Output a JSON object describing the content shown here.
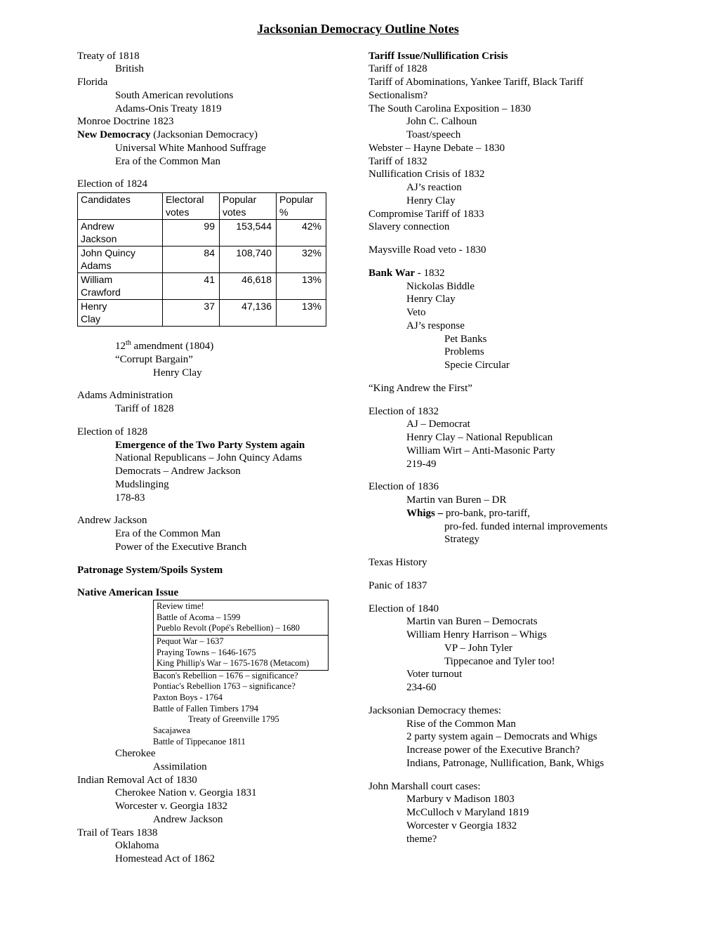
{
  "title": "Jacksonian Democracy Outline Notes",
  "election_table": {
    "headers": [
      "Candidates",
      "Electoral votes",
      "Popular votes",
      "Popular %"
    ],
    "rows": [
      [
        "Andrew Jackson",
        "99",
        "153,544",
        "42%"
      ],
      [
        "John Quincy Adams",
        "84",
        "108,740",
        "32%"
      ],
      [
        "William Crawford",
        "41",
        "46,618",
        "13%"
      ],
      [
        "Henry Clay",
        "37",
        "47,136",
        "13%"
      ]
    ],
    "col_widths": [
      "110px",
      "70px",
      "70px",
      "60px"
    ]
  },
  "col1": [
    {
      "t": "Treaty of 1818",
      "i": 0
    },
    {
      "t": "British",
      "i": 1
    },
    {
      "t": "Florida",
      "i": 0
    },
    {
      "t": "South American revolutions",
      "i": 1
    },
    {
      "t": "Adams-Onis Treaty 1819",
      "i": 1
    },
    {
      "t": "Monroe Doctrine 1823",
      "i": 0
    },
    {
      "html": "<b>New Democracy</b> (Jacksonian Democracy)",
      "i": 0
    },
    {
      "t": "Universal White Manhood Suffrage",
      "i": 1
    },
    {
      "t": "Era of the Common Man",
      "i": 1
    },
    {
      "sp": true
    },
    {
      "t": "Election of 1824",
      "i": 0
    },
    {
      "table": true
    },
    {
      "sp": true
    },
    {
      "html": "12<sup>th</sup> amendment (1804)",
      "i": 1
    },
    {
      "t": "“Corrupt Bargain”",
      "i": 1
    },
    {
      "t": "Henry Clay",
      "i": 2
    },
    {
      "sp": true
    },
    {
      "t": "Adams Administration",
      "i": 0
    },
    {
      "t": "Tariff of 1828",
      "i": 1
    },
    {
      "sp": true
    },
    {
      "t": "Election of 1828",
      "i": 0
    },
    {
      "t": "Emergence of the Two Party System again",
      "i": 1,
      "b": true
    },
    {
      "t": "National Republicans – John Quincy Adams",
      "i": 1
    },
    {
      "t": "Democrats – Andrew Jackson",
      "i": 1
    },
    {
      "t": "Mudslinging",
      "i": 1
    },
    {
      "t": "178-83",
      "i": 1
    },
    {
      "sp": true
    },
    {
      "t": "Andrew Jackson",
      "i": 0
    },
    {
      "t": "Era of the Common Man",
      "i": 1
    },
    {
      "t": "Power of the Executive Branch",
      "i": 1
    },
    {
      "sp": true
    },
    {
      "t": "Patronage System/Spoils System",
      "i": 0,
      "b": true
    },
    {
      "sp": true
    },
    {
      "t": "Native American Issue",
      "i": 0,
      "b": true
    },
    {
      "review": true
    },
    {
      "free": true
    },
    {
      "t": "Cherokee",
      "i": 1
    },
    {
      "t": "Assimilation",
      "i": 2
    },
    {
      "t": "Indian Removal Act of 1830",
      "i": 0
    },
    {
      "t": "Cherokee Nation v. Georgia 1831",
      "i": 1
    },
    {
      "t": "Worcester v. Georgia 1832",
      "i": 1
    },
    {
      "t": "Andrew Jackson",
      "i": 2
    },
    {
      "t": "Trail of Tears 1838",
      "i": 0
    },
    {
      "t": "Oklahoma",
      "i": 1
    },
    {
      "t": "Homestead Act of 1862",
      "i": 1
    }
  ],
  "review_rows": [
    "Review time!\nBattle of Acoma – 1599\nPueblo Revolt (Popé's Rebellion) – 1680",
    "Pequot War – 1637\nPraying Towns – 1646-1675\nKing Phillip's War – 1675-1678 (Metacom)"
  ],
  "free_lines": [
    {
      "t": "Bacon's Rebellion – 1676 – significance?"
    },
    {
      "t": "Pontiac's Rebellion 1763 – significance?"
    },
    {
      "t": "Paxton Boys - 1764"
    },
    {
      "t": "Battle of Fallen Timbers 1794"
    },
    {
      "t": "Treaty of Greenville 1795",
      "sub": true
    },
    {
      "t": "Sacajawea"
    },
    {
      "t": "Battle of Tippecanoe 1811"
    }
  ],
  "col2": [
    {
      "t": "Tariff Issue/Nullification Crisis",
      "i": 0,
      "b": true
    },
    {
      "t": "Tariff of 1828",
      "i": 0
    },
    {
      "t": "Tariff of Abominations, Yankee Tariff, Black Tariff",
      "i": 0
    },
    {
      "t": "Sectionalism?",
      "i": 0
    },
    {
      "t": "The South Carolina Exposition – 1830",
      "i": 0
    },
    {
      "t": "John C. Calhoun",
      "i": 1
    },
    {
      "t": "Toast/speech",
      "i": 1
    },
    {
      "t": "Webster – Hayne Debate – 1830",
      "i": 0
    },
    {
      "t": "Tariff of 1832",
      "i": 0
    },
    {
      "t": "Nullification Crisis of 1832",
      "i": 0
    },
    {
      "t": "AJ’s reaction",
      "i": 1
    },
    {
      "t": "Henry Clay",
      "i": 1
    },
    {
      "t": "Compromise Tariff of 1833",
      "i": 0
    },
    {
      "t": "Slavery connection",
      "i": 0
    },
    {
      "sp": true
    },
    {
      "t": "Maysville Road veto - 1830",
      "i": 0
    },
    {
      "sp": true
    },
    {
      "html": "<b>Bank War</b> - 1832",
      "i": 0
    },
    {
      "t": "Nickolas Biddle",
      "i": 1
    },
    {
      "t": "Henry Clay",
      "i": 1
    },
    {
      "t": "Veto",
      "i": 1
    },
    {
      "t": "AJ’s response",
      "i": 1
    },
    {
      "t": "Pet Banks",
      "i": 2
    },
    {
      "t": "Problems",
      "i": 2
    },
    {
      "t": "Specie Circular",
      "i": 2
    },
    {
      "sp": true
    },
    {
      "t": "“King Andrew the First”",
      "i": 0
    },
    {
      "sp": true
    },
    {
      "t": "Election of 1832",
      "i": 0
    },
    {
      "t": "AJ – Democrat",
      "i": 1
    },
    {
      "t": "Henry Clay – National Republican",
      "i": 1
    },
    {
      "t": "William Wirt – Anti-Masonic Party",
      "i": 1
    },
    {
      "t": "219-49",
      "i": 1
    },
    {
      "sp": true
    },
    {
      "t": "Election of 1836",
      "i": 0
    },
    {
      "t": "Martin van Buren – DR",
      "i": 1
    },
    {
      "html": "<b>Whigs –</b> pro-bank, pro-tariff,",
      "i": 1
    },
    {
      "t": "pro-fed. funded internal improvements",
      "i": 2
    },
    {
      "t": "Strategy",
      "i": 2
    },
    {
      "sp": true
    },
    {
      "t": "Texas History",
      "i": 0
    },
    {
      "sp": true
    },
    {
      "t": "Panic of 1837",
      "i": 0
    },
    {
      "sp": true
    },
    {
      "t": "Election of 1840",
      "i": 0
    },
    {
      "t": "Martin van Buren – Democrats",
      "i": 1
    },
    {
      "t": "William Henry Harrison – Whigs",
      "i": 1
    },
    {
      "t": "VP – John Tyler",
      "i": 2
    },
    {
      "t": "Tippecanoe and Tyler too!",
      "i": 2
    },
    {
      "t": "Voter turnout",
      "i": 1
    },
    {
      "t": "234-60",
      "i": 1
    },
    {
      "sp": true
    },
    {
      "t": "Jacksonian Democracy themes:",
      "i": 0
    },
    {
      "t": "Rise of the Common Man",
      "i": 1
    },
    {
      "t": "2 party system again – Democrats and Whigs",
      "i": 1
    },
    {
      "t": "Increase power of the Executive Branch?",
      "i": 1
    },
    {
      "t": "Indians, Patronage, Nullification, Bank, Whigs",
      "i": 1
    },
    {
      "sp": true
    },
    {
      "t": "John Marshall court cases:",
      "i": 0
    },
    {
      "t": "Marbury v Madison 1803",
      "i": 1
    },
    {
      "t": "McCulloch v Maryland 1819",
      "i": 1
    },
    {
      "t": "Worcester v Georgia 1832",
      "i": 1
    },
    {
      "t": "theme?",
      "i": 1
    }
  ]
}
